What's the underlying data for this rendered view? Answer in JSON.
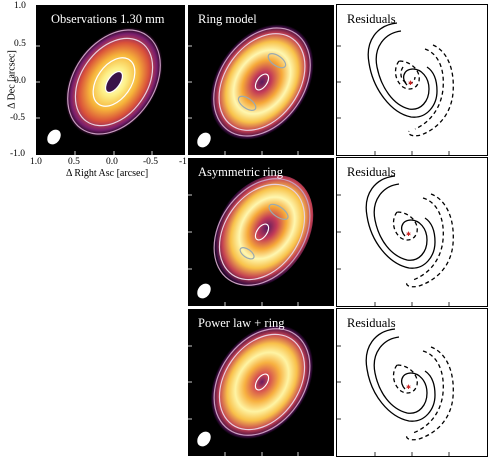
{
  "panels": {
    "obs": {
      "title": "Observations 1.30 mm"
    },
    "ring_model": {
      "title": "Ring model"
    },
    "asym_ring": {
      "title": "Asymmetric ring"
    },
    "power_law_ring": {
      "title": "Power law + ring"
    },
    "residuals_1": {
      "title": "Residuals"
    },
    "residuals_2": {
      "title": "Residuals"
    },
    "residuals_3": {
      "title": "Residuals"
    }
  },
  "axes": {
    "xlabel": "Δ Right Asc [arcsec]",
    "ylabel": "Δ Dec [arcsec]",
    "x_ticks": [
      "1.0",
      "0.5",
      "0.0",
      "-0.5",
      "-1"
    ],
    "y_ticks": [
      "1.0",
      "0.5",
      "0.0",
      "-0.5",
      "-1.0"
    ]
  },
  "colors": {
    "background_dark": "#000000",
    "contour_white": "#ffffff",
    "contour_pink": "#c89cc0",
    "contour_gray": "#9aaab0",
    "residual_star": "#cc2222"
  }
}
